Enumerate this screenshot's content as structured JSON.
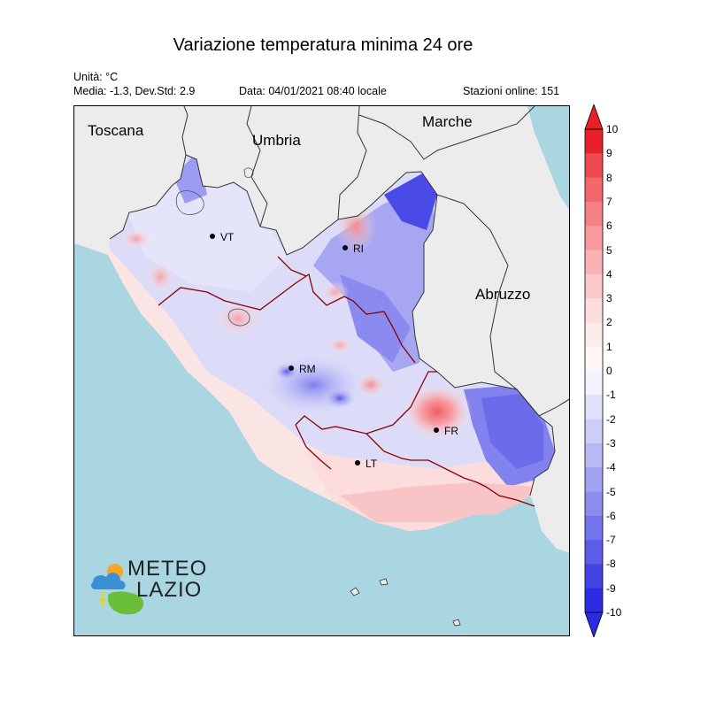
{
  "title": "Variazione temperatura minima 24 ore",
  "meta": {
    "unit": "Unità: °C",
    "stats": "Media: -1.3, Dev.Std: 2.9",
    "date": "Data: 04/01/2021 08:40 locale",
    "stations": "Stazioni online: 151"
  },
  "regions": {
    "toscana": "Toscana",
    "umbria": "Umbria",
    "marche": "Marche",
    "abruzzo": "Abruzzo"
  },
  "cities": [
    {
      "code": "VT"
    },
    {
      "code": "RI"
    },
    {
      "code": "RM"
    },
    {
      "code": "FR"
    },
    {
      "code": "LT"
    }
  ],
  "colorbar": {
    "min": -10,
    "max": 10,
    "labels": [
      "10",
      "9",
      "8",
      "7",
      "6",
      "5",
      "4",
      "3",
      "2",
      "1",
      "0",
      "-1",
      "-2",
      "-3",
      "-4",
      "-5",
      "-6",
      "-7",
      "-8",
      "-9",
      "-10"
    ],
    "colors_top_to_bottom": [
      "#e8202a",
      "#ee4a52",
      "#f2666c",
      "#f58186",
      "#f79a9e",
      "#f9b2b5",
      "#fbc8ca",
      "#fcdcdd",
      "#fdeaea",
      "#fff6f6",
      "#f2f2fd",
      "#e0e0fb",
      "#cdcdf8",
      "#b8b8f5",
      "#a2a2f2",
      "#8c8cef",
      "#7474ec",
      "#5c5ce9",
      "#4444e6",
      "#2b2be3"
    ]
  },
  "colors": {
    "sea": "#aad6e1",
    "land_outside": "#ececec",
    "region_border": "#8b0000"
  },
  "logo": {
    "line1": "METEO",
    "line2": "LAZIO"
  }
}
